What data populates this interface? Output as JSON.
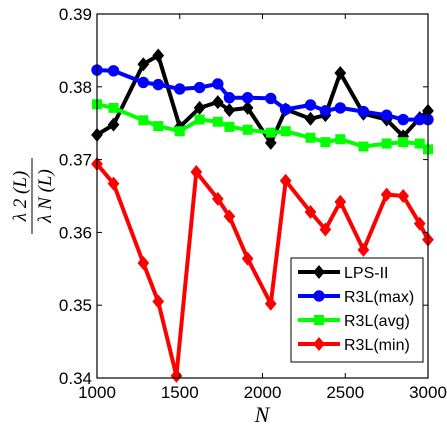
{
  "chart_data": {
    "type": "line",
    "xlabel": "N",
    "ylabel": {
      "numerator": "λ 2 (L)",
      "denominator": "λ N (L)"
    },
    "xlim": [
      1000,
      3000
    ],
    "ylim": [
      0.34,
      0.39
    ],
    "x_ticks": [
      1000,
      1500,
      2000,
      2500,
      3000
    ],
    "x_tick_labels": [
      "1000",
      "1500",
      "2000",
      "2500",
      "3000"
    ],
    "y_ticks": [
      0.34,
      0.35,
      0.36,
      0.37,
      0.38,
      0.39
    ],
    "y_tick_labels": [
      "0.34",
      "0.35",
      "0.36",
      "0.37",
      "0.38",
      "0.39"
    ],
    "grid": false,
    "legend_position": "bottom-right",
    "series": [
      {
        "name": "LPS-II",
        "color": "#000000",
        "marker": "diamond",
        "x": [
          1000,
          1100,
          1280,
          1370,
          1500,
          1620,
          1730,
          1800,
          1910,
          2050,
          2140,
          2290,
          2380,
          2470,
          2610,
          2750,
          2850,
          2950,
          3000
        ],
        "y": [
          0.3734,
          0.3748,
          0.3831,
          0.3843,
          0.3745,
          0.3771,
          0.3779,
          0.3768,
          0.3771,
          0.3723,
          0.3769,
          0.3756,
          0.3761,
          0.3819,
          0.3763,
          0.3755,
          0.3732,
          0.3757,
          0.3767
        ]
      },
      {
        "name": "R3L(max)",
        "color": "#0000ff",
        "marker": "circle",
        "x": [
          1000,
          1100,
          1280,
          1370,
          1500,
          1620,
          1730,
          1800,
          1910,
          2050,
          2140,
          2290,
          2380,
          2470,
          2610,
          2750,
          2850,
          2950,
          3000
        ],
        "y": [
          0.3823,
          0.3822,
          0.3806,
          0.3803,
          0.3797,
          0.3799,
          0.3804,
          0.3785,
          0.3785,
          0.3784,
          0.3769,
          0.3775,
          0.3767,
          0.3771,
          0.3766,
          0.3761,
          0.3755,
          0.3755,
          0.3755
        ]
      },
      {
        "name": "R3L(avg)",
        "color": "#00ff00",
        "marker": "square",
        "x": [
          1000,
          1100,
          1280,
          1370,
          1500,
          1620,
          1730,
          1800,
          1910,
          2050,
          2140,
          2290,
          2380,
          2470,
          2610,
          2750,
          2850,
          2950,
          3000
        ],
        "y": [
          0.3776,
          0.3771,
          0.3754,
          0.3746,
          0.3739,
          0.3755,
          0.3752,
          0.3745,
          0.3741,
          0.3737,
          0.3739,
          0.373,
          0.3724,
          0.3728,
          0.3718,
          0.3722,
          0.3724,
          0.3722,
          0.3714
        ]
      },
      {
        "name": "R3L(min)",
        "color": "#ff0000",
        "marker": "diamond",
        "x": [
          1000,
          1100,
          1280,
          1370,
          1480,
          1600,
          1730,
          1800,
          1910,
          2050,
          2140,
          2290,
          2380,
          2470,
          2610,
          2750,
          2850,
          2950,
          3000
        ],
        "y": [
          0.3694,
          0.3667,
          0.3558,
          0.3505,
          0.3403,
          0.3683,
          0.3646,
          0.3622,
          0.3564,
          0.3502,
          0.3671,
          0.3628,
          0.3604,
          0.3642,
          0.3576,
          0.3652,
          0.365,
          0.3612,
          0.359
        ]
      }
    ]
  }
}
